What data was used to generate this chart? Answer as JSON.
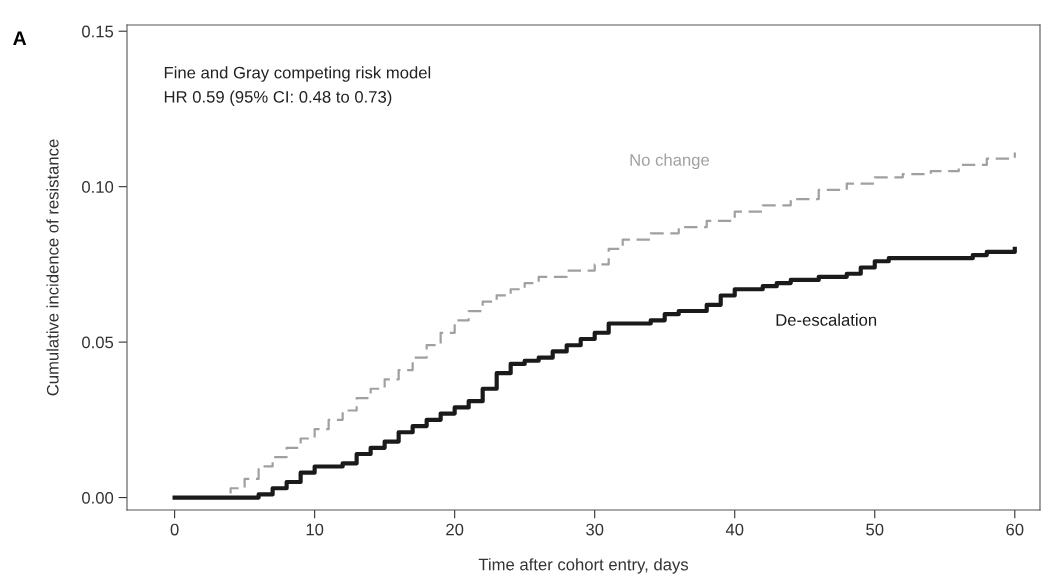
{
  "chart_data": {
    "type": "step",
    "xlabel": "Time after cohort entry, days",
    "ylabel": "Cumulative incidence of resistance",
    "annotations": [
      "A",
      "Fine and Gray competing risk model",
      "HR 0.59 (95% CI: 0.48 to 0.73)"
    ],
    "series": [
      {
        "name": "No change",
        "color": "#a0a0a0",
        "line_style": "dashed",
        "x": [
          0,
          4,
          5,
          6,
          7,
          8,
          9,
          10,
          11,
          12,
          13,
          14,
          15,
          16,
          17,
          18,
          19,
          20,
          21,
          22,
          23,
          24,
          25,
          26,
          28,
          30,
          31,
          32,
          34,
          36,
          38,
          40,
          42,
          44,
          46,
          48,
          50,
          52,
          54,
          56,
          58,
          60
        ],
        "values": [
          0,
          0.003,
          0.006,
          0.01,
          0.013,
          0.016,
          0.019,
          0.022,
          0.025,
          0.028,
          0.032,
          0.035,
          0.038,
          0.041,
          0.045,
          0.049,
          0.053,
          0.057,
          0.06,
          0.063,
          0.065,
          0.067,
          0.069,
          0.071,
          0.073,
          0.075,
          0.08,
          0.083,
          0.085,
          0.087,
          0.089,
          0.092,
          0.094,
          0.096,
          0.099,
          0.101,
          0.103,
          0.104,
          0.105,
          0.107,
          0.109,
          0.111
        ]
      },
      {
        "name": "De-escalation",
        "color": "#1a1a1a",
        "line_style": "solid",
        "x": [
          0,
          6,
          7,
          8,
          9,
          10,
          12,
          13,
          14,
          15,
          16,
          17,
          18,
          19,
          20,
          21,
          22,
          23,
          24,
          25,
          26,
          27,
          28,
          29,
          30,
          31,
          34,
          35,
          36,
          38,
          39,
          40,
          42,
          43,
          44,
          46,
          48,
          49,
          50,
          51,
          57,
          58,
          60
        ],
        "values": [
          0,
          0.001,
          0.003,
          0.005,
          0.008,
          0.01,
          0.011,
          0.014,
          0.016,
          0.018,
          0.021,
          0.023,
          0.025,
          0.027,
          0.029,
          0.031,
          0.035,
          0.04,
          0.043,
          0.044,
          0.045,
          0.047,
          0.049,
          0.051,
          0.053,
          0.056,
          0.057,
          0.059,
          0.06,
          0.062,
          0.065,
          0.067,
          0.068,
          0.069,
          0.07,
          0.071,
          0.072,
          0.074,
          0.076,
          0.077,
          0.078,
          0.079,
          0.08
        ]
      }
    ],
    "xlim": [
      -3.4,
      61.8
    ],
    "xticks": [
      0,
      10,
      20,
      30,
      40,
      50,
      60
    ],
    "ylim": [
      -0.004,
      0.152
    ],
    "yticks": [
      {
        "value": 0,
        "label": "0.00"
      },
      {
        "value": 0.05,
        "label": "0.05"
      },
      {
        "value": 0.1,
        "label": "0.10"
      },
      {
        "value": 0.15,
        "label": "0.15"
      }
    ],
    "grid": false,
    "legend": false
  }
}
